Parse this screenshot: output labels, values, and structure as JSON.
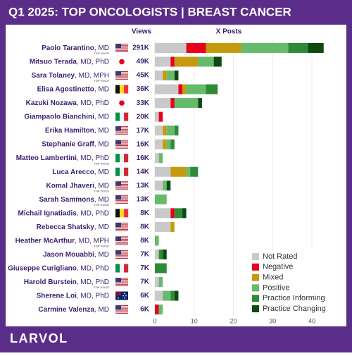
{
  "chart_data": {
    "type": "stacked_bar_horizontal",
    "title": "Q1 2025: TOP ONCOLOGISTS | BREAST CANCER",
    "views_header": "Views",
    "posts_header": "X Posts",
    "brand": "LARVOL",
    "categories": [
      "Paolo Tarantino",
      "Mitsuo Terada",
      "Sara Tolaney",
      "Elisa Agostinetto",
      "Kazuki Nozawa",
      "Giampaolo Bianchini",
      "Erika Hamilton",
      "Stephanie Graff",
      "Matteo Lambertini",
      "Luca Arecco",
      "Komal Jhaveri",
      "Sarah Sammons",
      "Michail Ignatiadis",
      "Rebecca Shatsky",
      "Heather McArthur",
      "Jason Mouabbi",
      "Giuseppe Curigliano",
      "Harold Burstein",
      "Sherene Loi",
      "Carmine Valenza"
    ],
    "credentials": [
      ", MD",
      ", MD, PhD",
      ", MD, MPH",
      ", MD",
      ", MD, PhD",
      ", MD",
      ", MD",
      ", MD",
      ", MD, PhD",
      ", MD",
      ", MD",
      ", MD",
      ", MD, PhD",
      ", MD",
      ", MD, MPH",
      ", MD",
      ", MD, PhD",
      ", MD, PhD",
      ", MD, PhD",
      ", MD"
    ],
    "badges": [
      "TOP VOICE",
      null,
      "TOP VOICE",
      null,
      null,
      null,
      null,
      null,
      "TOP VOICE",
      null,
      "TOP VOICE",
      "TOP VOICE",
      null,
      null,
      "TOP VOICE",
      null,
      null,
      "TOP VOICE",
      null,
      null
    ],
    "flags": [
      "us",
      "jp",
      "us",
      "be",
      "jp",
      "it",
      "us",
      "us",
      "it",
      "it",
      "us",
      "us",
      "be",
      "us",
      "us",
      "us",
      "it",
      "us",
      "au",
      "us"
    ],
    "views": {
      "values": [
        291000,
        49000,
        45000,
        36000,
        33000,
        20000,
        17000,
        16000,
        16000,
        14000,
        13000,
        13000,
        8000,
        8000,
        8000,
        7000,
        7000,
        7000,
        6000,
        6000
      ],
      "value_labels": [
        "291K",
        "49K",
        "45K",
        "36K",
        "33K",
        "20K",
        "17K",
        "16K",
        "16K",
        "14K",
        "13K",
        "13K",
        "8K",
        "8K",
        "8K",
        "7K",
        "7K",
        "7K",
        "6K",
        "6K"
      ]
    },
    "series": [
      {
        "name": "Not Rated",
        "color": "#c9c9c9",
        "values": [
          8,
          4,
          2,
          6,
          4,
          1,
          2,
          2,
          1,
          4,
          2,
          0,
          4,
          4,
          0,
          1,
          0,
          1,
          2,
          0
        ]
      },
      {
        "name": "Negative",
        "color": "#e8001c",
        "values": [
          5,
          1,
          0,
          1,
          1,
          1,
          0,
          0,
          0,
          0,
          0,
          0,
          1,
          0,
          0,
          0,
          0,
          0,
          0,
          1
        ]
      },
      {
        "name": "Mixed",
        "color": "#c49b0e",
        "values": [
          9,
          6,
          1,
          1,
          0,
          0,
          1,
          1,
          0,
          4,
          0,
          0,
          0,
          1,
          0,
          0,
          0,
          0,
          0,
          0
        ]
      },
      {
        "name": "Positive",
        "color": "#66bb6a",
        "values": [
          12,
          4,
          2,
          5,
          6,
          0,
          2,
          1,
          1,
          1,
          1,
          3,
          0,
          0,
          1,
          0,
          0,
          1,
          2,
          1
        ]
      },
      {
        "name": "Practice Informing",
        "color": "#2e8b35",
        "values": [
          5,
          0,
          0,
          3,
          0,
          0,
          1,
          1,
          0,
          2,
          0,
          0,
          2,
          0,
          0,
          1,
          3,
          0,
          1,
          0
        ]
      },
      {
        "name": "Practice Changing",
        "color": "#0d4a12",
        "values": [
          4,
          2,
          1,
          0,
          1,
          0,
          0,
          0,
          0,
          0,
          1,
          0,
          1,
          0,
          0,
          1,
          0,
          0,
          1,
          0
        ]
      }
    ],
    "xlim": [
      0,
      47.5
    ],
    "xticks": [
      0,
      10,
      20,
      30,
      40
    ],
    "grid": true
  }
}
